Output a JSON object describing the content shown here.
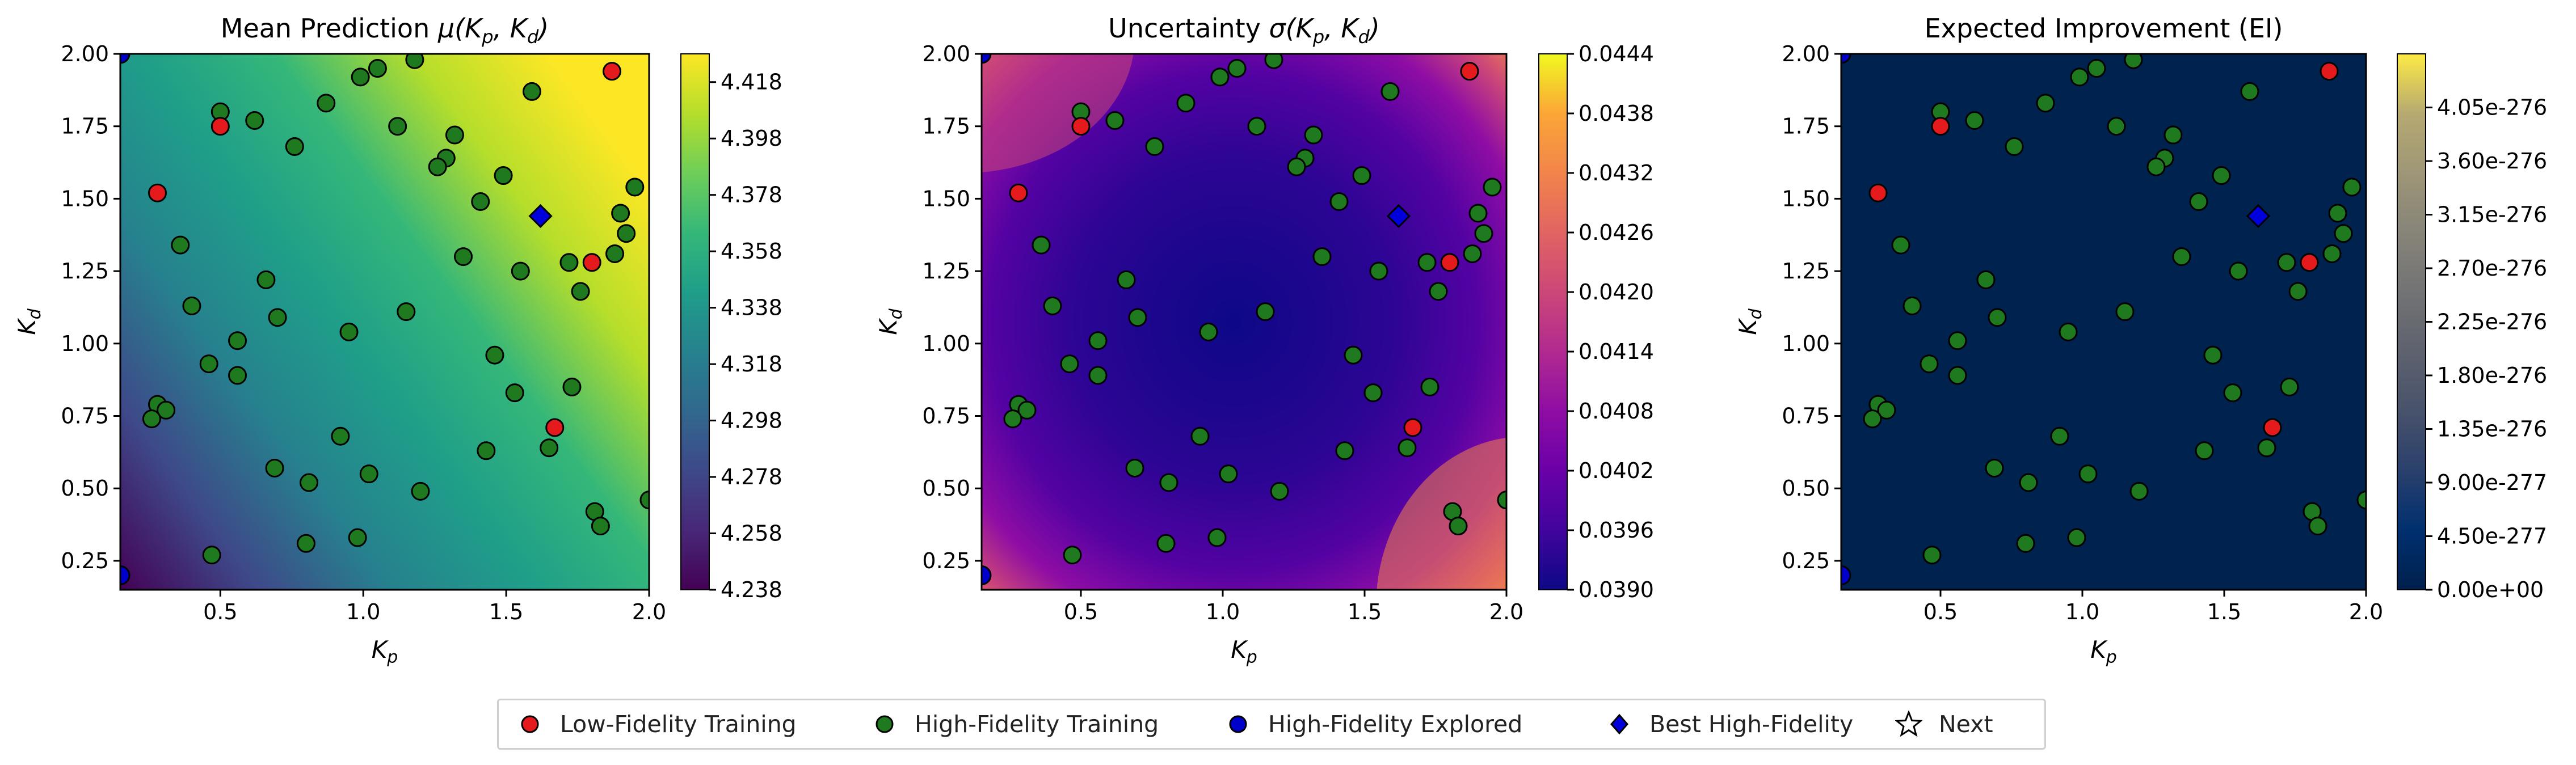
{
  "chart_data": [
    {
      "type": "heatmap",
      "title": "Mean Prediction μ(K_p, K_d)",
      "xlabel": "K_p",
      "ylabel": "K_d",
      "xlim": [
        0.15,
        2.0
      ],
      "ylim": [
        0.15,
        2.0
      ],
      "xticks": [
        "0.5",
        "1.0",
        "1.5",
        "2.0"
      ],
      "yticks": [
        "0.25",
        "0.50",
        "0.75",
        "1.00",
        "1.25",
        "1.50",
        "1.75",
        "2.00"
      ],
      "colormap": "viridis",
      "colorbar_range": [
        4.238,
        4.428
      ],
      "colorbar_ticks": [
        "4.238",
        "4.258",
        "4.278",
        "4.298",
        "4.318",
        "4.338",
        "4.358",
        "4.378",
        "4.398",
        "4.418"
      ]
    },
    {
      "type": "heatmap",
      "title": "Uncertainty σ(K_p, K_d)",
      "xlabel": "K_p",
      "ylabel": "K_d",
      "xlim": [
        0.15,
        2.0
      ],
      "ylim": [
        0.15,
        2.0
      ],
      "xticks": [
        "0.5",
        "1.0",
        "1.5",
        "2.0"
      ],
      "yticks": [
        "0.25",
        "0.50",
        "0.75",
        "1.00",
        "1.25",
        "1.50",
        "1.75",
        "2.00"
      ],
      "colormap": "plasma",
      "colorbar_range": [
        0.039,
        0.0444
      ],
      "colorbar_ticks": [
        "0.0390",
        "0.0396",
        "0.0402",
        "0.0408",
        "0.0414",
        "0.0420",
        "0.0426",
        "0.0432",
        "0.0438",
        "0.0444"
      ]
    },
    {
      "type": "heatmap",
      "title": "Expected Improvement (EI)",
      "xlabel": "K_p",
      "ylabel": "K_d",
      "xlim": [
        0.15,
        2.0
      ],
      "ylim": [
        0.15,
        2.0
      ],
      "xticks": [
        "0.5",
        "1.0",
        "1.5",
        "2.0"
      ],
      "yticks": [
        "0.25",
        "0.50",
        "0.75",
        "1.00",
        "1.25",
        "1.50",
        "1.75",
        "2.00"
      ],
      "colormap": "cividis",
      "colorbar_range": [
        0,
        4.5e-276
      ],
      "colorbar_ticks": [
        "0.00e+00",
        "4.50e-277",
        "9.00e-277",
        "1.35e-276",
        "1.80e-276",
        "2.25e-276",
        "2.70e-276",
        "3.15e-276",
        "3.60e-276",
        "4.05e-276"
      ]
    }
  ],
  "points": {
    "low_fidelity": [
      [
        0.5,
        1.75
      ],
      [
        0.28,
        1.52
      ],
      [
        1.87,
        1.94
      ],
      [
        1.8,
        1.28
      ],
      [
        1.67,
        0.71
      ]
    ],
    "high_fidelity": [
      [
        0.5,
        1.8
      ],
      [
        0.62,
        1.77
      ],
      [
        0.76,
        1.68
      ],
      [
        0.87,
        1.83
      ],
      [
        0.99,
        1.92
      ],
      [
        1.05,
        1.95
      ],
      [
        1.18,
        1.98
      ],
      [
        1.12,
        1.75
      ],
      [
        1.32,
        1.72
      ],
      [
        1.29,
        1.64
      ],
      [
        1.26,
        1.61
      ],
      [
        1.59,
        1.87
      ],
      [
        1.49,
        1.58
      ],
      [
        1.41,
        1.49
      ],
      [
        1.95,
        1.54
      ],
      [
        1.9,
        1.45
      ],
      [
        1.92,
        1.38
      ],
      [
        1.88,
        1.31
      ],
      [
        1.35,
        1.3
      ],
      [
        1.55,
        1.25
      ],
      [
        1.72,
        1.28
      ],
      [
        1.76,
        1.18
      ],
      [
        1.15,
        1.11
      ],
      [
        0.95,
        1.04
      ],
      [
        0.7,
        1.09
      ],
      [
        0.66,
        1.22
      ],
      [
        0.36,
        1.34
      ],
      [
        0.4,
        1.13
      ],
      [
        0.56,
        1.01
      ],
      [
        0.46,
        0.93
      ],
      [
        0.56,
        0.89
      ],
      [
        1.46,
        0.96
      ],
      [
        1.73,
        0.85
      ],
      [
        1.53,
        0.83
      ],
      [
        0.28,
        0.79
      ],
      [
        0.31,
        0.77
      ],
      [
        0.26,
        0.74
      ],
      [
        0.92,
        0.68
      ],
      [
        1.43,
        0.63
      ],
      [
        1.65,
        0.64
      ],
      [
        0.69,
        0.57
      ],
      [
        0.81,
        0.52
      ],
      [
        1.02,
        0.55
      ],
      [
        1.2,
        0.49
      ],
      [
        2.0,
        0.46
      ],
      [
        1.81,
        0.42
      ],
      [
        1.83,
        0.37
      ],
      [
        0.8,
        0.31
      ],
      [
        0.98,
        0.33
      ],
      [
        0.47,
        0.27
      ]
    ],
    "high_fidelity_explored": [
      [
        0.15,
        0.2
      ],
      [
        0.15,
        2.0
      ]
    ],
    "best_high_fidelity": [
      [
        1.62,
        1.44
      ]
    ]
  },
  "legend": [
    {
      "label": "Low-Fidelity Training",
      "marker": "circle",
      "color": "#e41a1c"
    },
    {
      "label": "High-Fidelity Training",
      "marker": "circle",
      "color": "#1f7a1f"
    },
    {
      "label": "High-Fidelity Explored",
      "marker": "circle",
      "color": "#0000cc"
    },
    {
      "label": "Best High-Fidelity",
      "marker": "diamond",
      "color": "#0000dd"
    },
    {
      "label": "Next",
      "marker": "star",
      "color": "#ffffff"
    }
  ]
}
